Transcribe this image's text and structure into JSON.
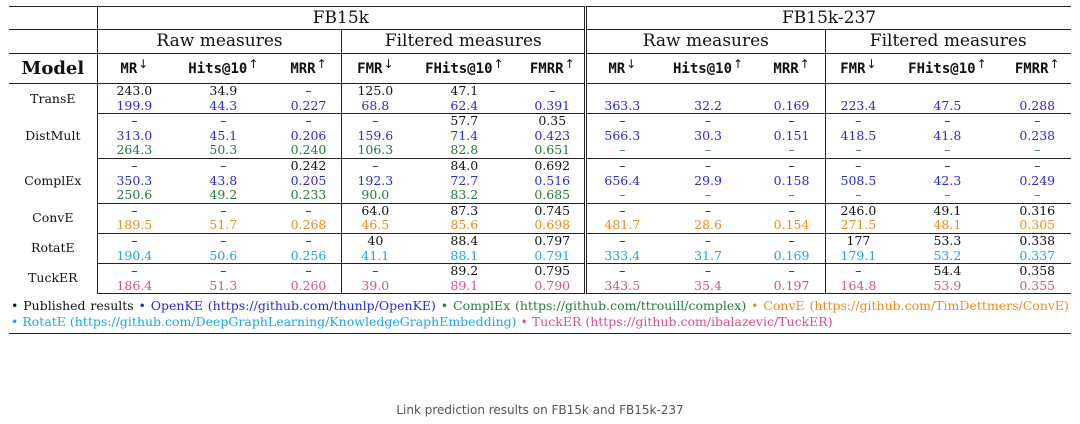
{
  "table": {
    "datasets": [
      "FB15k",
      "FB15k-237"
    ],
    "groups": [
      "Raw measures",
      "Filtered measures",
      "Raw measures",
      "Filtered measures"
    ],
    "model_header": "Model",
    "metrics": [
      {
        "name": "MR",
        "arrow": "↓"
      },
      {
        "name": "Hits@10",
        "arrow": "↑"
      },
      {
        "name": "MRR",
        "arrow": "↑"
      },
      {
        "name": "FMR",
        "arrow": "↓"
      },
      {
        "name": "FHits@10",
        "arrow": "↑"
      },
      {
        "name": "FMRR",
        "arrow": "↑"
      },
      {
        "name": "MR",
        "arrow": "↓"
      },
      {
        "name": "Hits@10",
        "arrow": "↑"
      },
      {
        "name": "MRR",
        "arrow": "↑"
      },
      {
        "name": "FMR",
        "arrow": "↓"
      },
      {
        "name": "FHits@10",
        "arrow": "↑"
      },
      {
        "name": "FMRR",
        "arrow": "↑"
      }
    ],
    "models": [
      {
        "name": "TransE",
        "rows": [
          {
            "source": "pub",
            "values": [
              "243.0",
              "34.9",
              "–",
              "125.0",
              "47.1",
              "–",
              "",
              "",
              "",
              "",
              "",
              ""
            ]
          },
          {
            "source": "openke",
            "values": [
              "199.9",
              "44.3",
              "0.227",
              "68.8",
              "62.4",
              "0.391",
              "363.3",
              "32.2",
              "0.169",
              "223.4",
              "47.5",
              "0.288"
            ]
          }
        ]
      },
      {
        "name": "DistMult",
        "rows": [
          {
            "source": "pub",
            "values": [
              "–",
              "–",
              "–",
              "–",
              "57.7",
              "0.35",
              "–",
              "–",
              "–",
              "–",
              "–",
              "–"
            ]
          },
          {
            "source": "openke",
            "values": [
              "313.0",
              "45.1",
              "0.206",
              "159.6",
              "71.4",
              "0.423",
              "566.3",
              "30.3",
              "0.151",
              "418.5",
              "41.8",
              "0.238"
            ]
          },
          {
            "source": "complex",
            "values": [
              "264.3",
              "50.3",
              "0.240",
              "106.3",
              "82.8",
              "0.651",
              "–",
              "–",
              "–",
              "–",
              "–",
              "–"
            ]
          }
        ]
      },
      {
        "name": "ComplEx",
        "rows": [
          {
            "source": "pub",
            "values": [
              "–",
              "–",
              "0.242",
              "–",
              "84.0",
              "0.692",
              "–",
              "–",
              "–",
              "–",
              "–",
              "–"
            ]
          },
          {
            "source": "openke",
            "values": [
              "350.3",
              "43.8",
              "0.205",
              "192.3",
              "72.7",
              "0.516",
              "656.4",
              "29.9",
              "0.158",
              "508.5",
              "42.3",
              "0.249"
            ]
          },
          {
            "source": "complex",
            "values": [
              "250.6",
              "49.2",
              "0.233",
              "90.0",
              "83.2",
              "0.685",
              "–",
              "–",
              "–",
              "–",
              "–",
              "–"
            ]
          }
        ]
      },
      {
        "name": "ConvE",
        "rows": [
          {
            "source": "pub",
            "values": [
              "–",
              "–",
              "–",
              "64.0",
              "87.3",
              "0.745",
              "–",
              "–",
              "–",
              "246.0",
              "49.1",
              "0.316"
            ]
          },
          {
            "source": "conve",
            "values": [
              "189.5",
              "51.7",
              "0.268",
              "46.5",
              "85.6",
              "0.698",
              "481.7",
              "28.6",
              "0.154",
              "271.5",
              "48.1",
              "0.305"
            ]
          }
        ]
      },
      {
        "name": "RotatE",
        "rows": [
          {
            "source": "pub",
            "values": [
              "–",
              "–",
              "–",
              "40",
              "88.4",
              "0.797",
              "–",
              "–",
              "–",
              "177",
              "53.3",
              "0.338"
            ]
          },
          {
            "source": "rotate",
            "values": [
              "190.4",
              "50.6",
              "0.256",
              "41.1",
              "88.1",
              "0.791",
              "333.4",
              "31.7",
              "0.169",
              "179.1",
              "53.2",
              "0.337"
            ]
          }
        ]
      },
      {
        "name": "TuckER",
        "rows": [
          {
            "source": "pub",
            "values": [
              "–",
              "–",
              "–",
              "–",
              "89.2",
              "0.795",
              "–",
              "–",
              "–",
              "–",
              "54.4",
              "0.358"
            ]
          },
          {
            "source": "tucker",
            "values": [
              "186.4",
              "51.3",
              "0.260",
              "39.0",
              "89.1",
              "0.790",
              "343.5",
              "35.4",
              "0.197",
              "164.8",
              "53.9",
              "0.355"
            ]
          }
        ]
      }
    ]
  },
  "legend": {
    "bullet": "•",
    "items": [
      {
        "source": "pub",
        "text": "Published results"
      },
      {
        "source": "openke",
        "text": "OpenKE (https://github.com/thunlp/OpenKE)"
      },
      {
        "source": "complex",
        "text": "ComplEx (https://github.com/ttrouill/complex)"
      },
      {
        "source": "conve",
        "text": "ConvE (https://github.com/TimDettmers/ConvE)"
      },
      {
        "source": "rotate",
        "text": "RotatE (https://github.com/DeepGraphLearning/KnowledgeGraphEmbedding)"
      },
      {
        "source": "tucker",
        "text": "TuckER (https://github.com/ibalazevic/TuckER)"
      }
    ]
  },
  "colors": {
    "pub": "#111111",
    "openke": "#2b2bd6",
    "complex": "#237a3a",
    "conve": "#f08a1c",
    "rotate": "#1aa6e8",
    "tucker": "#d9508a"
  },
  "caption": "Link prediction results on FB15k and FB15k-237"
}
